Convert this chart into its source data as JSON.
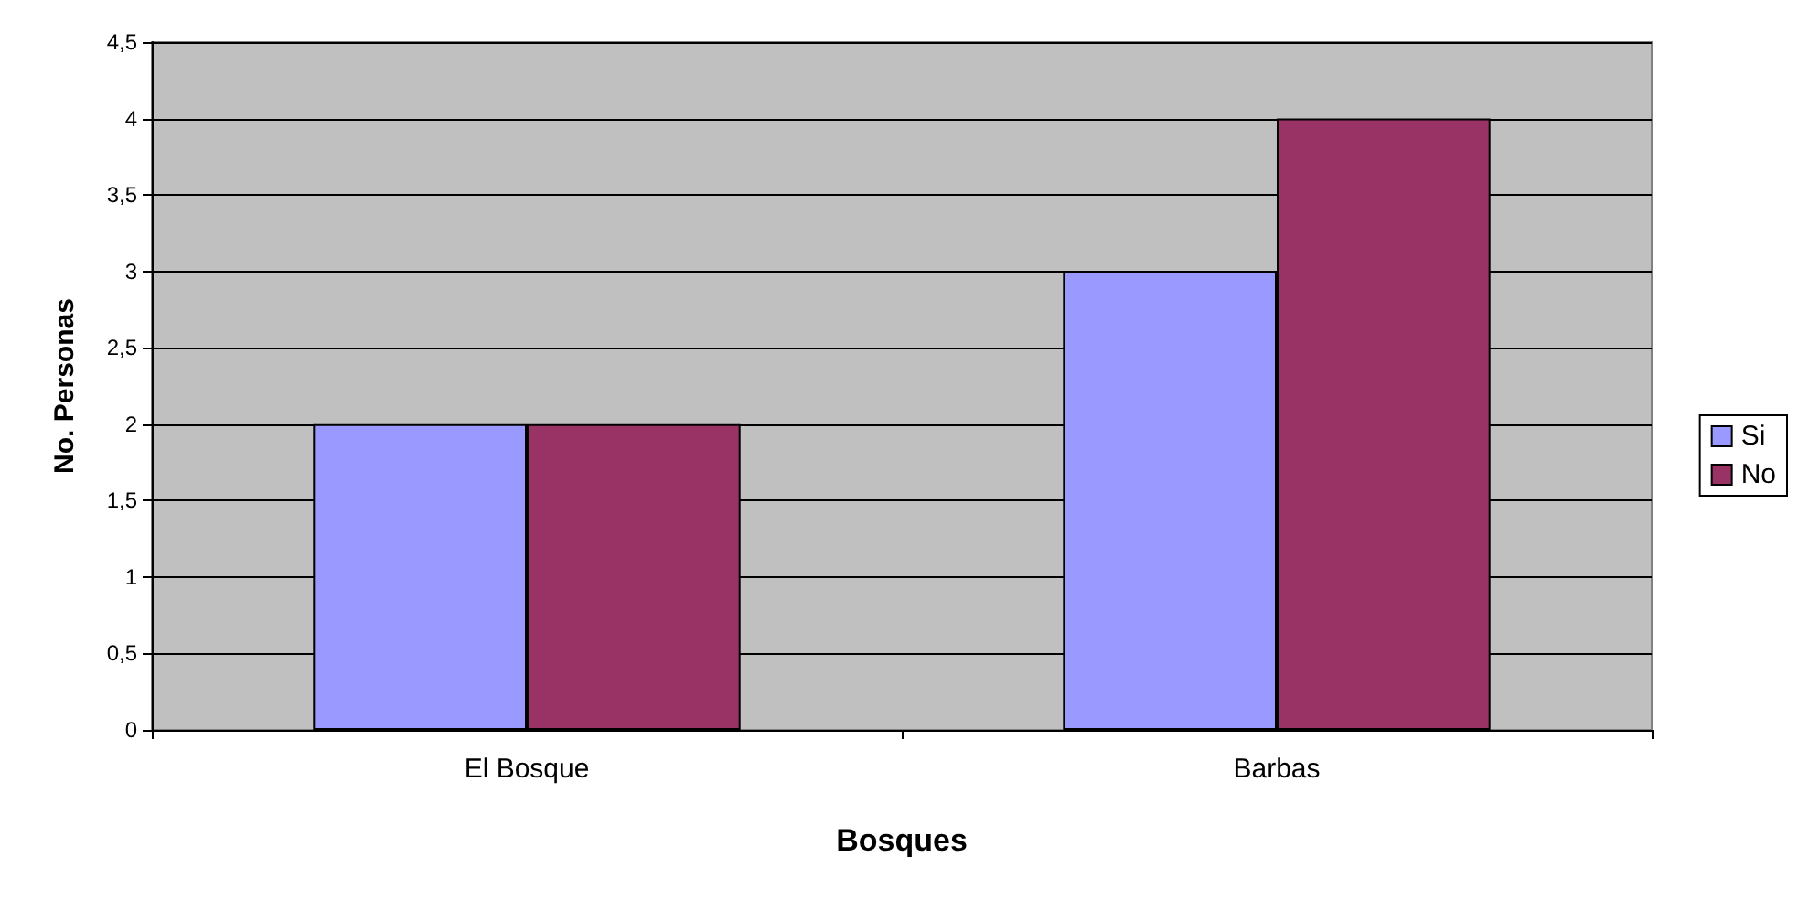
{
  "chart_data": {
    "type": "bar",
    "xlabel": "Bosques",
    "ylabel": "No. Personas",
    "categories": [
      "El Bosque",
      "Barbas"
    ],
    "series": [
      {
        "name": "Si",
        "color": "#9999ff",
        "values": [
          2,
          3
        ]
      },
      {
        "name": "No",
        "color": "#993366",
        "values": [
          2,
          4
        ]
      }
    ],
    "ylim": [
      0,
      4.5
    ],
    "yticks": [
      0,
      {
        "value": 0.5,
        "label": "0,5"
      },
      1,
      {
        "value": 1.5,
        "label": "1,5"
      },
      2,
      {
        "value": 2.5,
        "label": "2,5"
      },
      3,
      {
        "value": 3.5,
        "label": "3,5"
      },
      4,
      {
        "value": 4.5,
        "label": "4,5"
      }
    ],
    "grid": "y",
    "legend": "right"
  }
}
